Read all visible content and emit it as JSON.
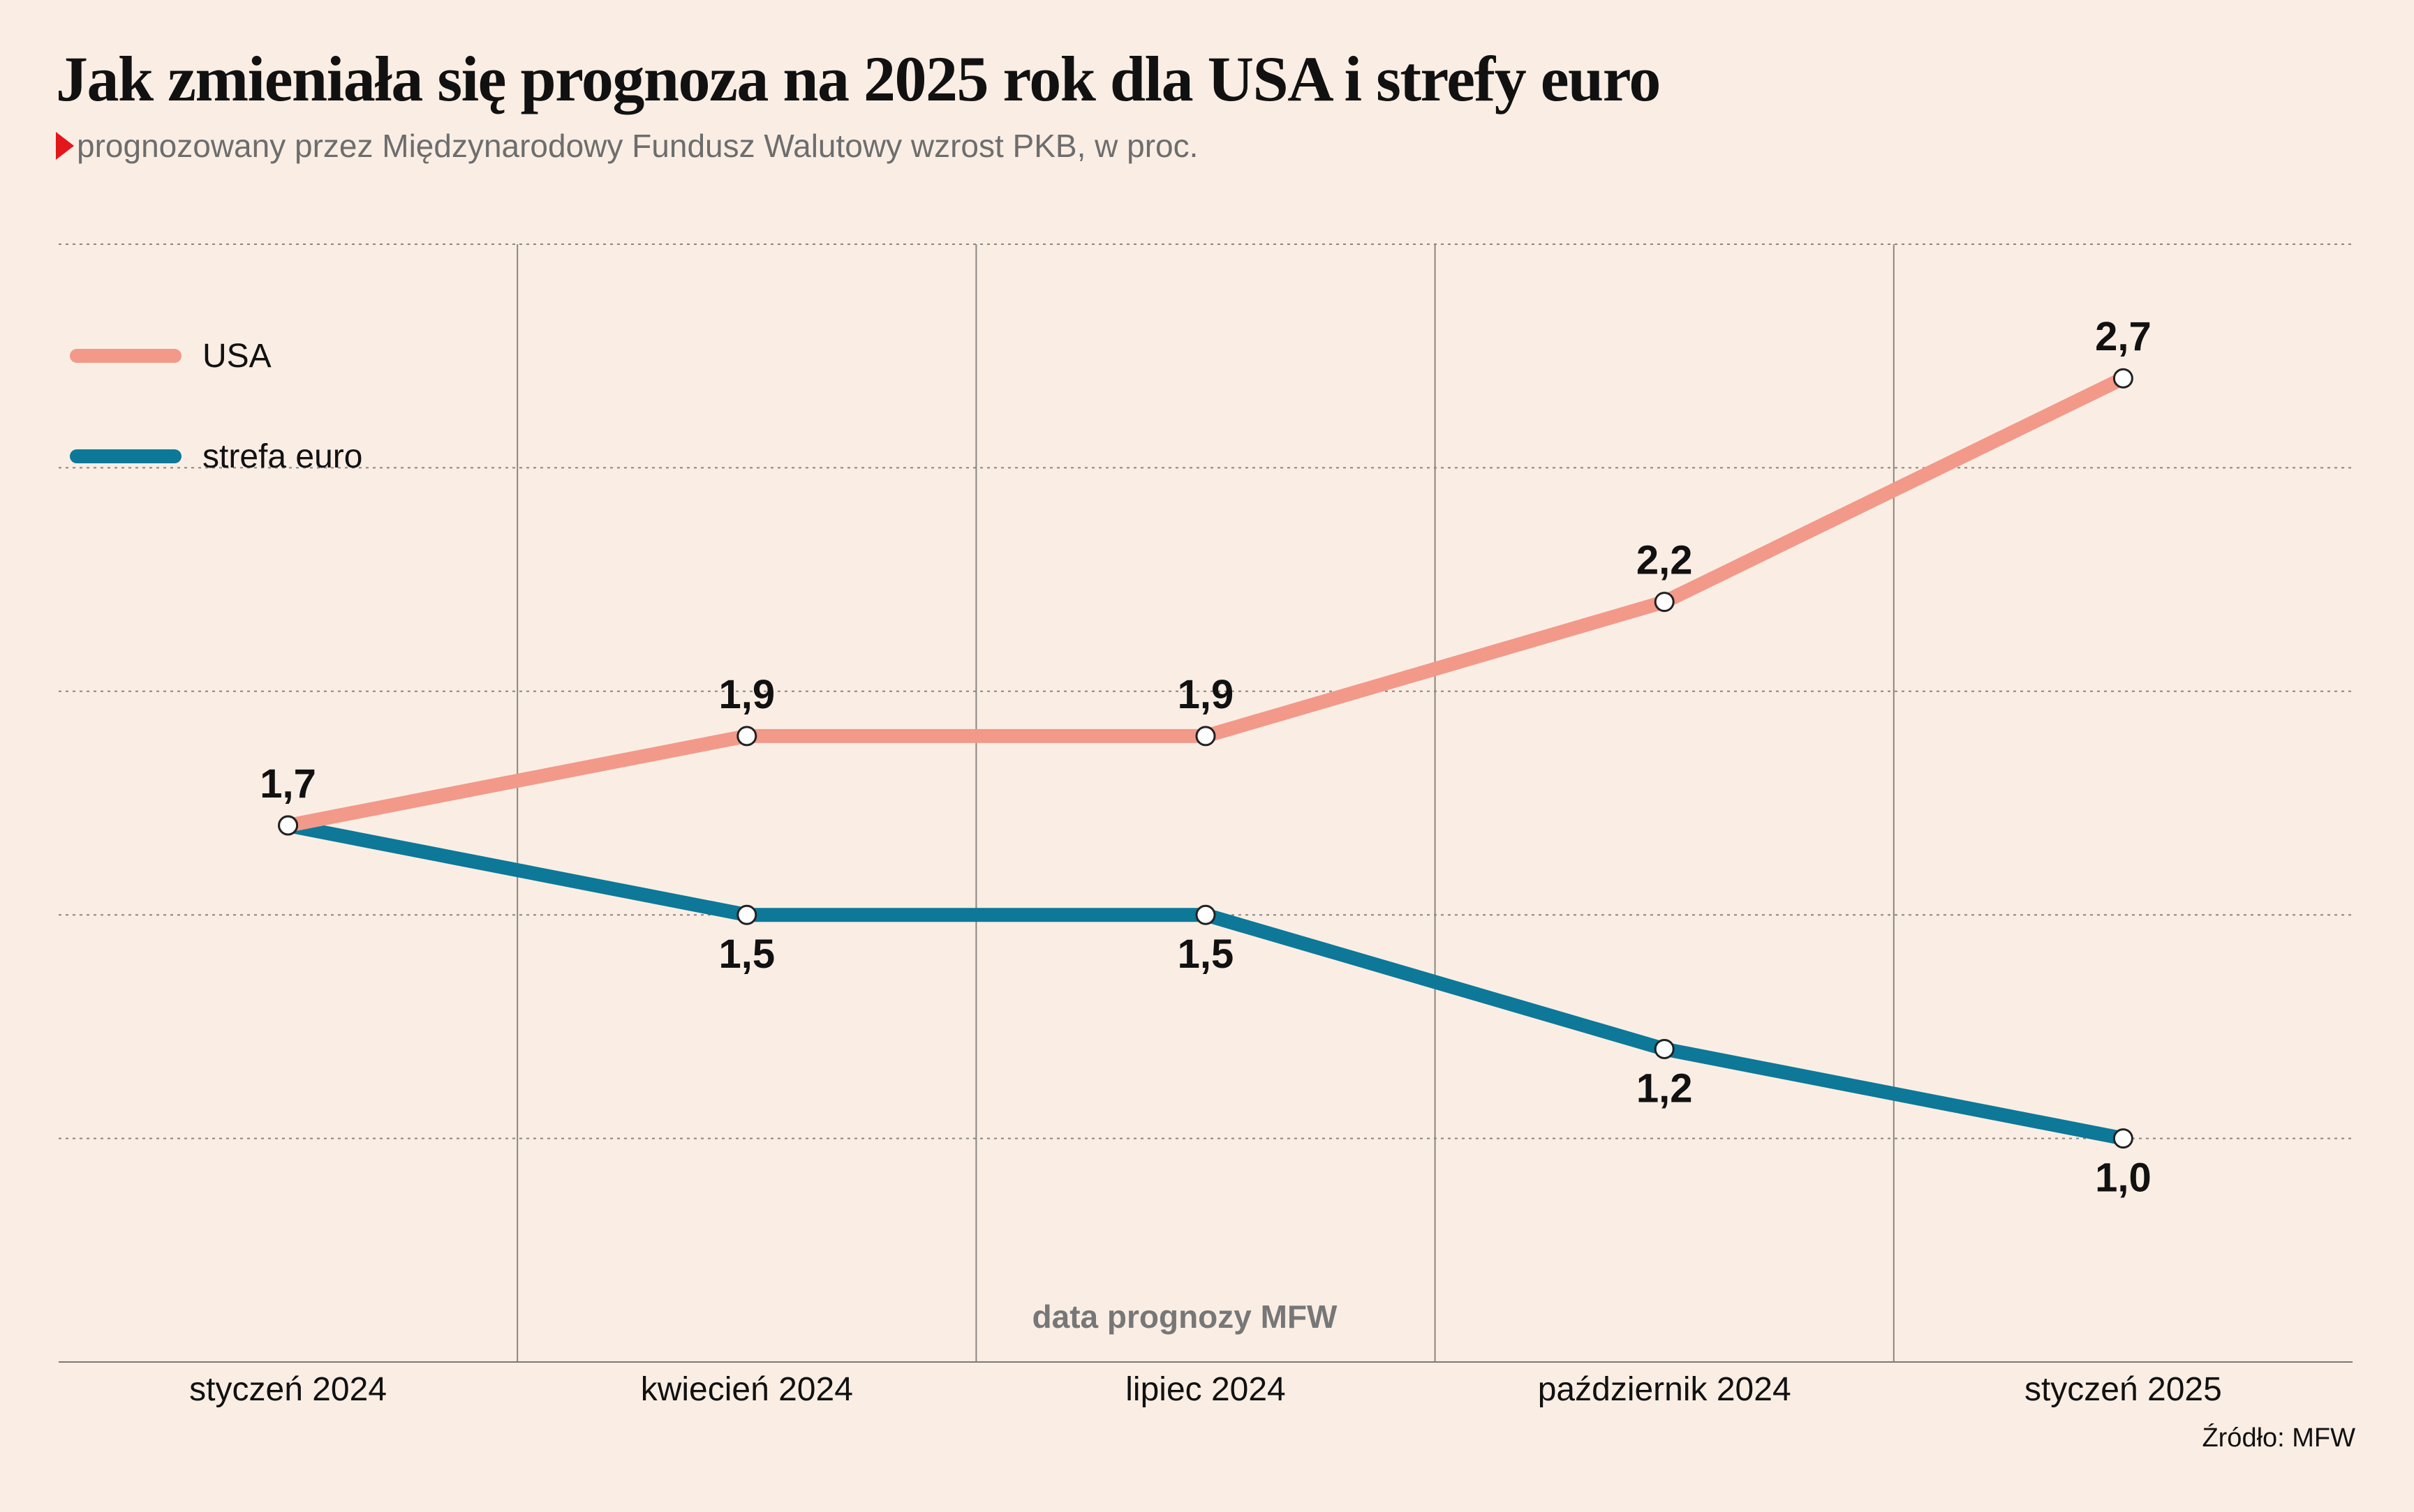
{
  "title": "Jak zmieniała się prognoza na 2025 rok dla USA i strefy euro",
  "subtitle": "prognozowany przez Międzynarodowy Fundusz Walutowy wzrost PKB, w proc.",
  "source": "Źródło: MFW",
  "colors": {
    "usa": "#f2998a",
    "euro": "#0d7898",
    "background": "#faeee4",
    "accent": "#e3161b"
  },
  "chart_data": {
    "type": "line",
    "title": "Jak zmieniała się prognoza na 2025 rok dla USA i strefy euro",
    "subtitle": "prognozowany przez Międzynarodowy Fundusz Walutowy wzrost PKB, w proc.",
    "xlabel": "data prognozy MFW",
    "ylabel": "",
    "categories": [
      "styczeń 2024",
      "kwiecień 2024",
      "lipiec 2024",
      "październik 2024",
      "styczeń 2025"
    ],
    "series": [
      {
        "name": "USA",
        "values": [
          1.7,
          1.9,
          1.9,
          2.2,
          2.7
        ],
        "labels": [
          "1,7",
          "1,9",
          "1,9",
          "2,2",
          "2,7"
        ]
      },
      {
        "name": "strefa euro",
        "values": [
          1.7,
          1.5,
          1.5,
          1.2,
          1.0
        ],
        "labels": [
          "",
          "1,5",
          "1,5",
          "1,2",
          "1,0"
        ]
      }
    ],
    "ylim": [
      0.5,
      3.0
    ],
    "grid": true,
    "legend": "top-left"
  }
}
